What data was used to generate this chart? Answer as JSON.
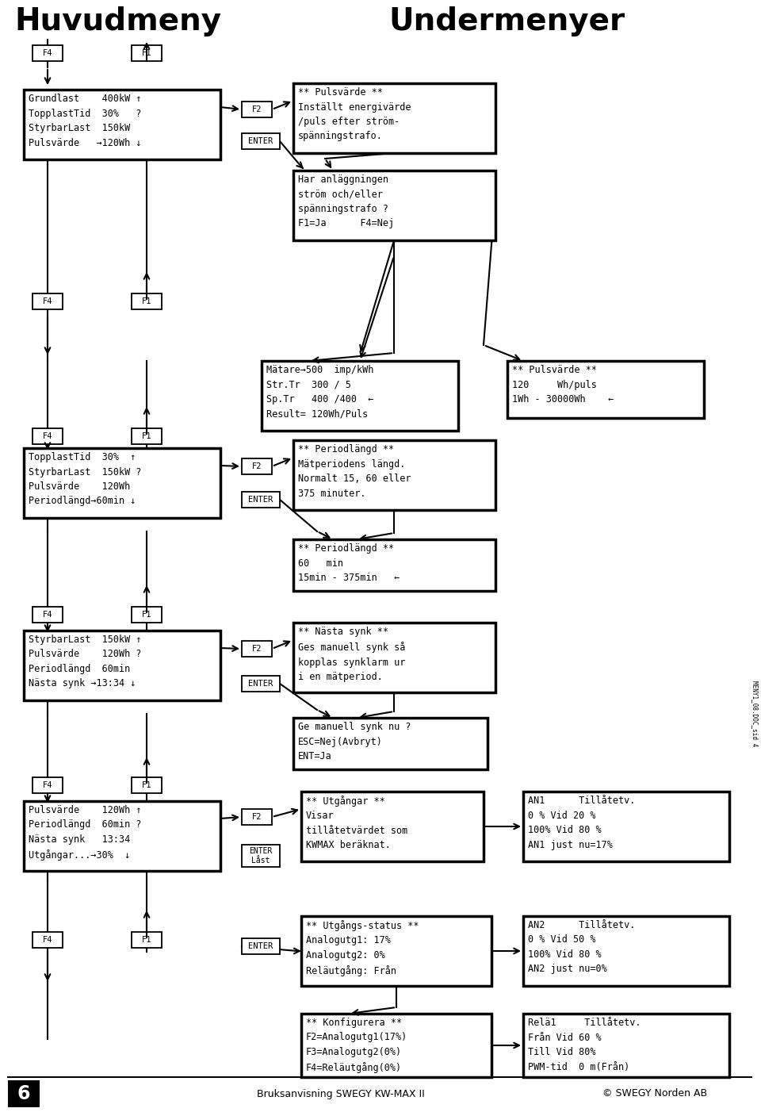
{
  "title_left": "Huvudmeny",
  "title_right": "Undermenyer",
  "bg_color": "#ffffff",
  "box1_text": "Grundlast    400kW ↑\nTopplastTid  30%   ?\nStyrbarLast  150kW\nPulsvärde   →120Wh ↓",
  "box2_text": "** Pulsvärde **\nInställt energivärde\n/puls efter ström-\nspänningstrafo.",
  "box3_text": "Har anläggningen\nström och/eller\nspänningstrafo ?\nF1=Ja      F4=Nej",
  "box4_text": "Mätare→500  imp/kWh\nStr.Tr  300 / 5\nSp.Tr   400 /400  ←\nResult= 120Wh/Puls",
  "box5_text": "** Pulsvärde **\n120     Wh/puls\n1Wh - 30000Wh    ←",
  "box6_text": "TopplastTid  30%  ↑\nStyrbarLast  150kW ?\nPulsvärde    120Wh\nPeriodlängd→60min ↓",
  "box7_text": "** Periodlängd **\nMätperiodens längd.\nNormalt 15, 60 eller\n375 minuter.",
  "box8_text": "** Periodlängd **\n60   min\n15min - 375min   ←",
  "box9_text": "StyrbarLast  150kW ↑\nPulsvärde    120Wh ?\nPeriodlängd  60min\nNästa synk →13:34 ↓",
  "box10_text": "** Nästa synk **\nGes manuell synk så\nkopplas synklarm ur\ni en mätperiod.",
  "box11_text": "Ge manuell synk nu ?\nESC=Nej(Avbryt)\nENT=Ja",
  "box12_text": "Pulsvärde    120Wh ↑\nPeriodlängd  60min ?\nNästa synk   13:34\nUtgångar...→30%  ↓",
  "box13_text": "** Utgångar **\nVisar\ntillåtetvärdet som\nKWMAX beräknat.",
  "box14_text": "AN1      Tillåtetv.\n0 % Vid 20 %\n100% Vid 80 %\nAN1 just nu=17%",
  "box15_text": "** Utgångs-status **\nAnalogutg1: 17%\nAnalogutg2: 0%\nReläutgång: Från",
  "box16_text": "AN2      Tillåtetv.\n0 % Vid 50 %\n100% Vid 80 %\nAN2 just nu=0%",
  "box17_text": "** Konfigurera **\nF2=Analogutg1(17%)\nF3=Analogutg2(0%)\nF4=Reläutgång(0%)",
  "box18_text": "Relä1     Tillåtetv.\nFrån Vid 60 %\nTill Vid 80%\nPWM-tid  0 m(Från)",
  "footer_page": "6",
  "footer_center": "Bruksanvisning SWEGY KW-MAX II",
  "footer_right": "© SWEGY Norden AB",
  "sidebar": "MENY1_08.DOC_sid 4"
}
